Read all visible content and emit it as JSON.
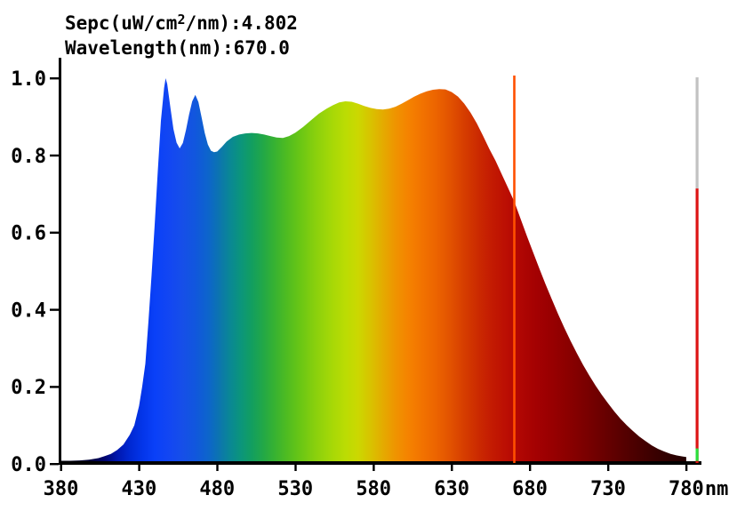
{
  "window": {
    "background": "#ffffff"
  },
  "readout": {
    "line1_prefix": "Sepc(uW/cm",
    "line1_sup": "2",
    "line1_suffix": "/nm):4.802",
    "line2": "Wavelength(nm):670.0",
    "sepc_value": 4.802,
    "wavelength_value": 670.0
  },
  "chart_data": {
    "type": "area",
    "title": "",
    "xlabel": "Wavelength",
    "ylabel": "Relative intensity",
    "x_unit": "nm",
    "xlim": [
      380,
      780
    ],
    "ylim": [
      0.0,
      1.0
    ],
    "grid": false,
    "x_ticks": [
      380,
      430,
      480,
      530,
      580,
      630,
      680,
      730,
      780
    ],
    "y_tick_labels": [
      "0.0",
      "0.2",
      "0.4",
      "0.6",
      "0.8",
      "1.0"
    ],
    "cursor": {
      "wavelength": 670.0,
      "color": "#ff5000"
    },
    "level_bar": {
      "value": 0.714,
      "marker_value": 0.04,
      "track_color": "#c2c2c2",
      "fill_color": "#dd1414",
      "marker_color": "#2ae03c"
    },
    "series": [
      {
        "name": "spectrum",
        "points": [
          [
            380,
            0.008
          ],
          [
            386,
            0.008
          ],
          [
            392,
            0.009
          ],
          [
            398,
            0.011
          ],
          [
            404,
            0.015
          ],
          [
            408,
            0.02
          ],
          [
            412,
            0.026
          ],
          [
            416,
            0.036
          ],
          [
            420,
            0.05
          ],
          [
            424,
            0.075
          ],
          [
            427,
            0.1
          ],
          [
            430,
            0.15
          ],
          [
            432,
            0.2
          ],
          [
            434,
            0.26
          ],
          [
            436,
            0.37
          ],
          [
            438,
            0.49
          ],
          [
            440,
            0.62
          ],
          [
            442,
            0.76
          ],
          [
            444,
            0.89
          ],
          [
            446,
            0.975
          ],
          [
            447,
            1.0
          ],
          [
            448,
            0.985
          ],
          [
            450,
            0.925
          ],
          [
            452,
            0.868
          ],
          [
            454,
            0.833
          ],
          [
            456,
            0.818
          ],
          [
            458,
            0.832
          ],
          [
            460,
            0.866
          ],
          [
            462,
            0.906
          ],
          [
            464,
            0.94
          ],
          [
            466,
            0.957
          ],
          [
            468,
            0.938
          ],
          [
            470,
            0.898
          ],
          [
            472,
            0.858
          ],
          [
            474,
            0.828
          ],
          [
            476,
            0.812
          ],
          [
            478,
            0.808
          ],
          [
            480,
            0.81
          ],
          [
            483,
            0.822
          ],
          [
            486,
            0.836
          ],
          [
            490,
            0.848
          ],
          [
            494,
            0.854
          ],
          [
            498,
            0.857
          ],
          [
            502,
            0.858
          ],
          [
            506,
            0.857
          ],
          [
            510,
            0.854
          ],
          [
            514,
            0.85
          ],
          [
            518,
            0.846
          ],
          [
            522,
            0.845
          ],
          [
            526,
            0.85
          ],
          [
            530,
            0.859
          ],
          [
            535,
            0.874
          ],
          [
            540,
            0.891
          ],
          [
            545,
            0.908
          ],
          [
            550,
            0.921
          ],
          [
            554,
            0.93
          ],
          [
            558,
            0.937
          ],
          [
            562,
            0.94
          ],
          [
            566,
            0.939
          ],
          [
            570,
            0.934
          ],
          [
            574,
            0.928
          ],
          [
            578,
            0.923
          ],
          [
            582,
            0.92
          ],
          [
            586,
            0.919
          ],
          [
            590,
            0.921
          ],
          [
            594,
            0.926
          ],
          [
            598,
            0.934
          ],
          [
            602,
            0.943
          ],
          [
            606,
            0.952
          ],
          [
            610,
            0.96
          ],
          [
            614,
            0.966
          ],
          [
            618,
            0.97
          ],
          [
            622,
            0.972
          ],
          [
            626,
            0.971
          ],
          [
            630,
            0.964
          ],
          [
            634,
            0.952
          ],
          [
            638,
            0.934
          ],
          [
            642,
            0.911
          ],
          [
            646,
            0.883
          ],
          [
            650,
            0.851
          ],
          [
            654,
            0.817
          ],
          [
            658,
            0.786
          ],
          [
            662,
            0.751
          ],
          [
            666,
            0.716
          ],
          [
            670,
            0.68
          ],
          [
            674,
            0.636
          ],
          [
            678,
            0.592
          ],
          [
            682,
            0.549
          ],
          [
            686,
            0.507
          ],
          [
            690,
            0.466
          ],
          [
            694,
            0.427
          ],
          [
            698,
            0.389
          ],
          [
            702,
            0.353
          ],
          [
            706,
            0.319
          ],
          [
            710,
            0.287
          ],
          [
            714,
            0.257
          ],
          [
            718,
            0.229
          ],
          [
            722,
            0.203
          ],
          [
            726,
            0.179
          ],
          [
            730,
            0.157
          ],
          [
            734,
            0.136
          ],
          [
            738,
            0.117
          ],
          [
            742,
            0.1
          ],
          [
            746,
            0.085
          ],
          [
            750,
            0.071
          ],
          [
            754,
            0.059
          ],
          [
            758,
            0.048
          ],
          [
            762,
            0.039
          ],
          [
            766,
            0.032
          ],
          [
            770,
            0.026
          ],
          [
            774,
            0.022
          ],
          [
            778,
            0.019
          ],
          [
            780,
            0.018
          ]
        ]
      }
    ],
    "color_stops": [
      [
        380,
        "#000012"
      ],
      [
        398,
        "#000034"
      ],
      [
        408,
        "#00056e"
      ],
      [
        416,
        "#0017ae"
      ],
      [
        424,
        "#0028d2"
      ],
      [
        432,
        "#0335e9"
      ],
      [
        440,
        "#0a40f8"
      ],
      [
        450,
        "#1347f2"
      ],
      [
        458,
        "#164fe8"
      ],
      [
        466,
        "#1157dd"
      ],
      [
        474,
        "#0d64cc"
      ],
      [
        481,
        "#0c74b0"
      ],
      [
        488,
        "#0a8795"
      ],
      [
        495,
        "#0b957c"
      ],
      [
        502,
        "#129e60"
      ],
      [
        509,
        "#21a748"
      ],
      [
        516,
        "#35b133"
      ],
      [
        524,
        "#4dbb22"
      ],
      [
        533,
        "#69c615"
      ],
      [
        543,
        "#8ad00d"
      ],
      [
        553,
        "#a5d807"
      ],
      [
        562,
        "#bbdc03"
      ],
      [
        570,
        "#cbd801"
      ],
      [
        578,
        "#d8c300"
      ],
      [
        586,
        "#e4ab00"
      ],
      [
        594,
        "#ef9400"
      ],
      [
        602,
        "#f58300"
      ],
      [
        611,
        "#f27300"
      ],
      [
        620,
        "#ec6400"
      ],
      [
        629,
        "#e25200"
      ],
      [
        638,
        "#d63d00"
      ],
      [
        647,
        "#cb2a01"
      ],
      [
        656,
        "#c31a02"
      ],
      [
        665,
        "#bb0e03"
      ],
      [
        674,
        "#b00603"
      ],
      [
        684,
        "#a40102"
      ],
      [
        695,
        "#970001"
      ],
      [
        707,
        "#870000"
      ],
      [
        720,
        "#740000"
      ],
      [
        734,
        "#5f0000"
      ],
      [
        748,
        "#4a0000"
      ],
      [
        762,
        "#370000"
      ],
      [
        772,
        "#2b0000"
      ],
      [
        780,
        "#240000"
      ]
    ]
  },
  "colors": {
    "axis": "#000000",
    "text": "#000000"
  }
}
